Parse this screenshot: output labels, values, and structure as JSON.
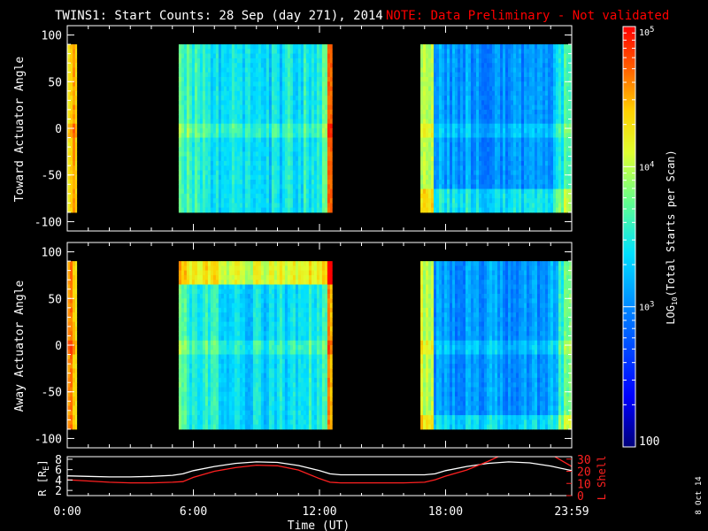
{
  "title": {
    "main": "TWINS1: Start Counts: 28 Sep (day 271), 2014",
    "note": "NOTE: Data Preliminary - Not validated",
    "note_color": "#ff0000"
  },
  "footer_date": "8 Oct 14",
  "chart_data": [
    {
      "type": "heatmap",
      "ylabel": "Toward Actuator Angle",
      "yticks": [
        "100",
        "50",
        "0",
        "-50",
        "-100"
      ],
      "ylim": [
        -110,
        110
      ],
      "xlim": [
        0,
        24
      ],
      "data_y_range": [
        -90,
        90
      ],
      "coverage_hours": [
        [
          0.0,
          0.45
        ],
        [
          5.3,
          12.6
        ],
        [
          16.8,
          24.0
        ]
      ]
    },
    {
      "type": "heatmap",
      "ylabel": "Away Actuator Angle",
      "yticks": [
        "100",
        "50",
        "0",
        "-50",
        "-100"
      ],
      "ylim": [
        -110,
        110
      ],
      "xlim": [
        0,
        24
      ],
      "data_y_range": [
        -90,
        90
      ],
      "coverage_hours": [
        [
          0.0,
          0.45
        ],
        [
          5.3,
          12.6
        ],
        [
          16.8,
          24.0
        ]
      ]
    },
    {
      "type": "line",
      "ylabel_left": "R [R",
      "ylabel_left_sub": "E",
      "ylabel_left_end": "]",
      "ylabel_right": "L Shell",
      "yticks_left": [
        "8",
        "6",
        "4",
        "2"
      ],
      "yticks_right": [
        "30",
        "20",
        "10",
        "0"
      ],
      "ylim_left": [
        1,
        8.5
      ],
      "ylim_right": [
        0,
        32
      ],
      "xlabel": "Time (UT)",
      "xticks": [
        "0:00",
        "6:00",
        "12:00",
        "18:00",
        "23:59"
      ],
      "xtick_hours": [
        0,
        6,
        12,
        18,
        24
      ],
      "series": [
        {
          "color": "#ffffff",
          "x": [
            0,
            1,
            2,
            3,
            4,
            5,
            5.5,
            6,
            7,
            8,
            9,
            10,
            11,
            12,
            12.5,
            13,
            14,
            15,
            16,
            17,
            17.5,
            18,
            19,
            20,
            21,
            22,
            23,
            24
          ],
          "y": [
            4.8,
            4.7,
            4.6,
            4.6,
            4.7,
            4.9,
            5.2,
            5.8,
            6.6,
            7.2,
            7.5,
            7.4,
            6.8,
            5.8,
            5.2,
            5.0,
            5.0,
            5.0,
            5.0,
            5.0,
            5.2,
            5.8,
            6.6,
            7.2,
            7.5,
            7.3,
            6.7,
            5.8
          ]
        },
        {
          "color": "#ff2020",
          "x": [
            0,
            1,
            2,
            3,
            4,
            5,
            5.5,
            6,
            7,
            8,
            9,
            10,
            11,
            12,
            12.5,
            13,
            14,
            15,
            16,
            17,
            17.5,
            18,
            19,
            20,
            20.5
          ],
          "y2": [
            13,
            12,
            11,
            10.5,
            10.5,
            11,
            11.5,
            15,
            20,
            23,
            25,
            24.5,
            21,
            14,
            11,
            10.5,
            10.5,
            10.5,
            10.5,
            11,
            13,
            16,
            21,
            28,
            32
          ]
        },
        {
          "color": "#ff2020",
          "x": [
            23.2,
            23.6,
            24
          ],
          "y2": [
            32,
            28,
            24
          ]
        }
      ]
    }
  ],
  "colorbar": {
    "label": "LOG",
    "label_sub": "10",
    "label_end": "(Total Starts per Scan)",
    "ticks": [
      {
        "text": "10",
        "sup": "5",
        "val": 5
      },
      {
        "text": "10",
        "sup": "4",
        "val": 4
      },
      {
        "text": "10",
        "sup": "3",
        "val": 3
      },
      {
        "text": "100",
        "sup": "",
        "val": 2
      }
    ],
    "range": [
      2,
      5
    ]
  }
}
